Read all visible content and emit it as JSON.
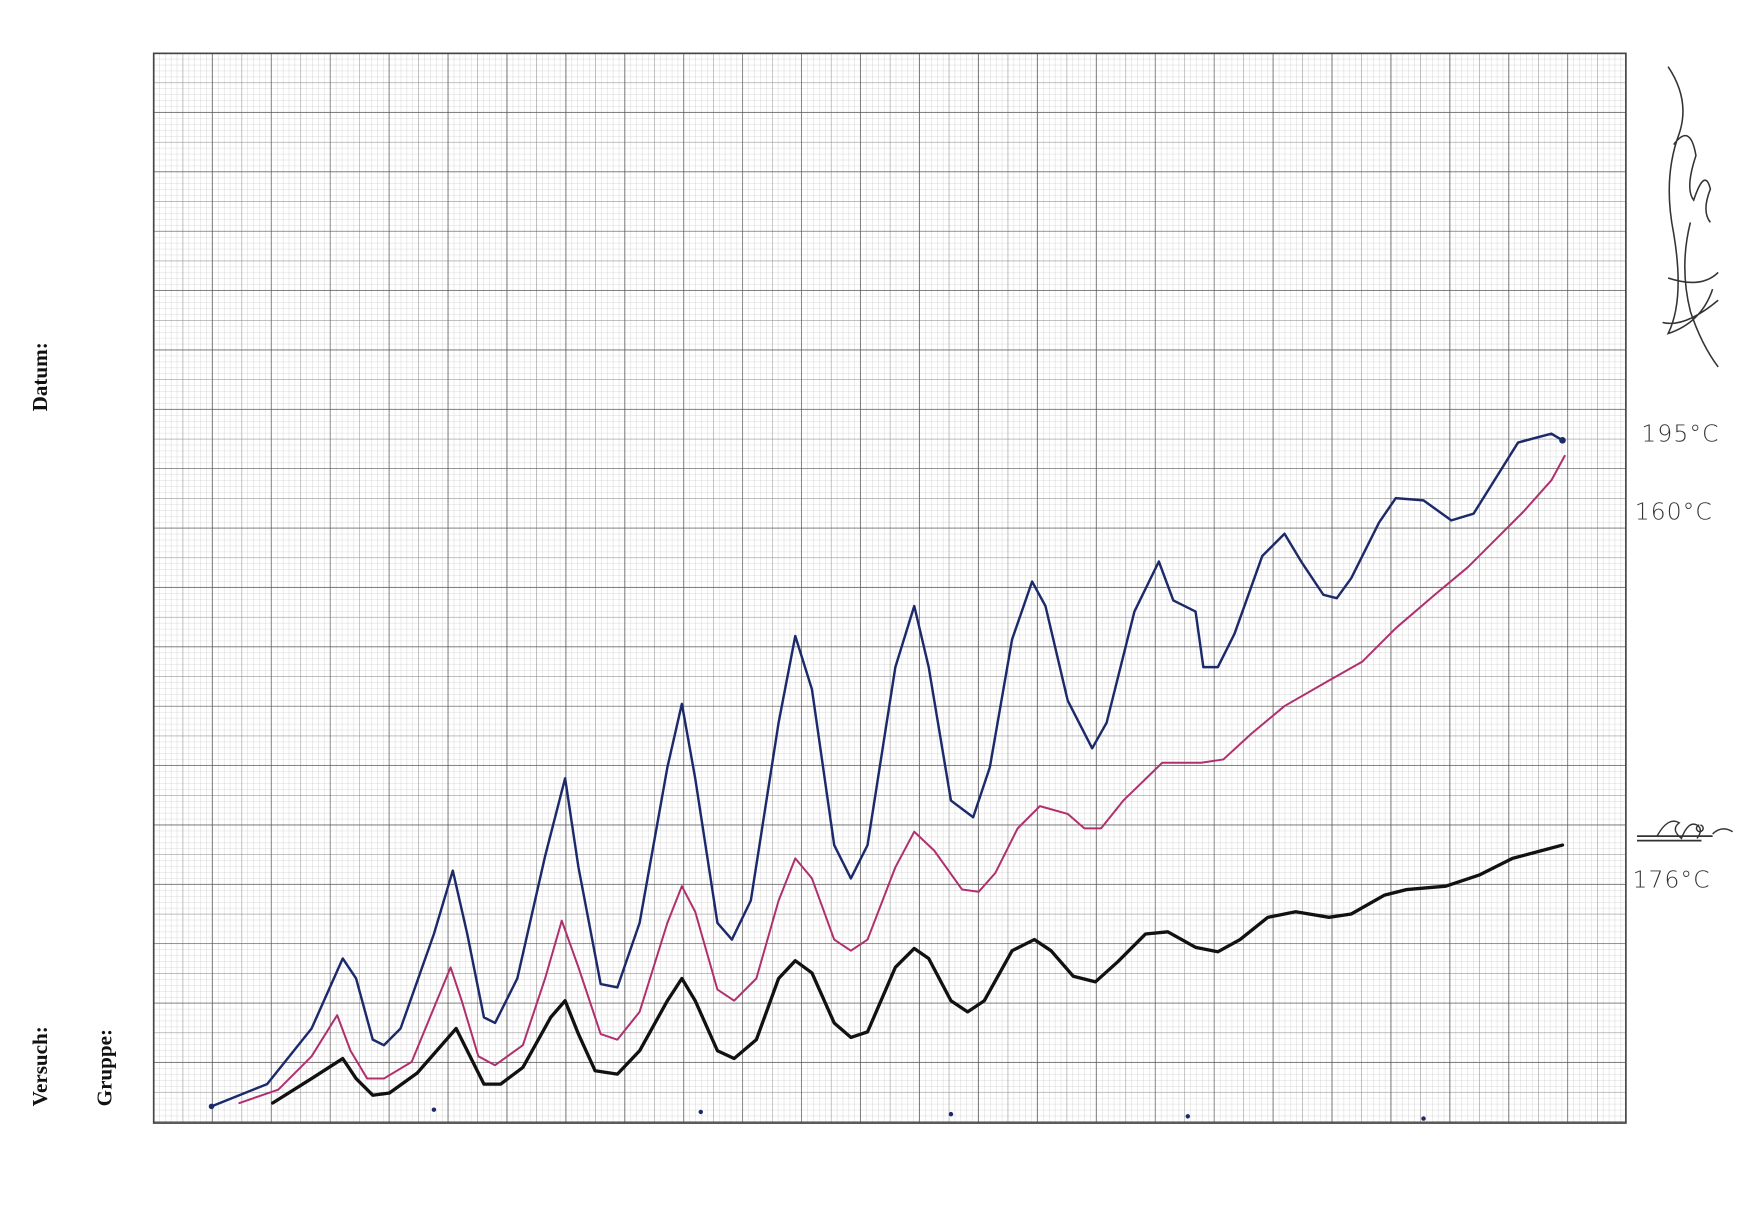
{
  "form": {
    "date_label": "Datum:",
    "experiment_label": "Versuch:",
    "group_label": "Gruppe:"
  },
  "annotations": {
    "curve_blue": "195°C",
    "curve_magenta": "160°C",
    "curve_black": "176°C"
  }
}
